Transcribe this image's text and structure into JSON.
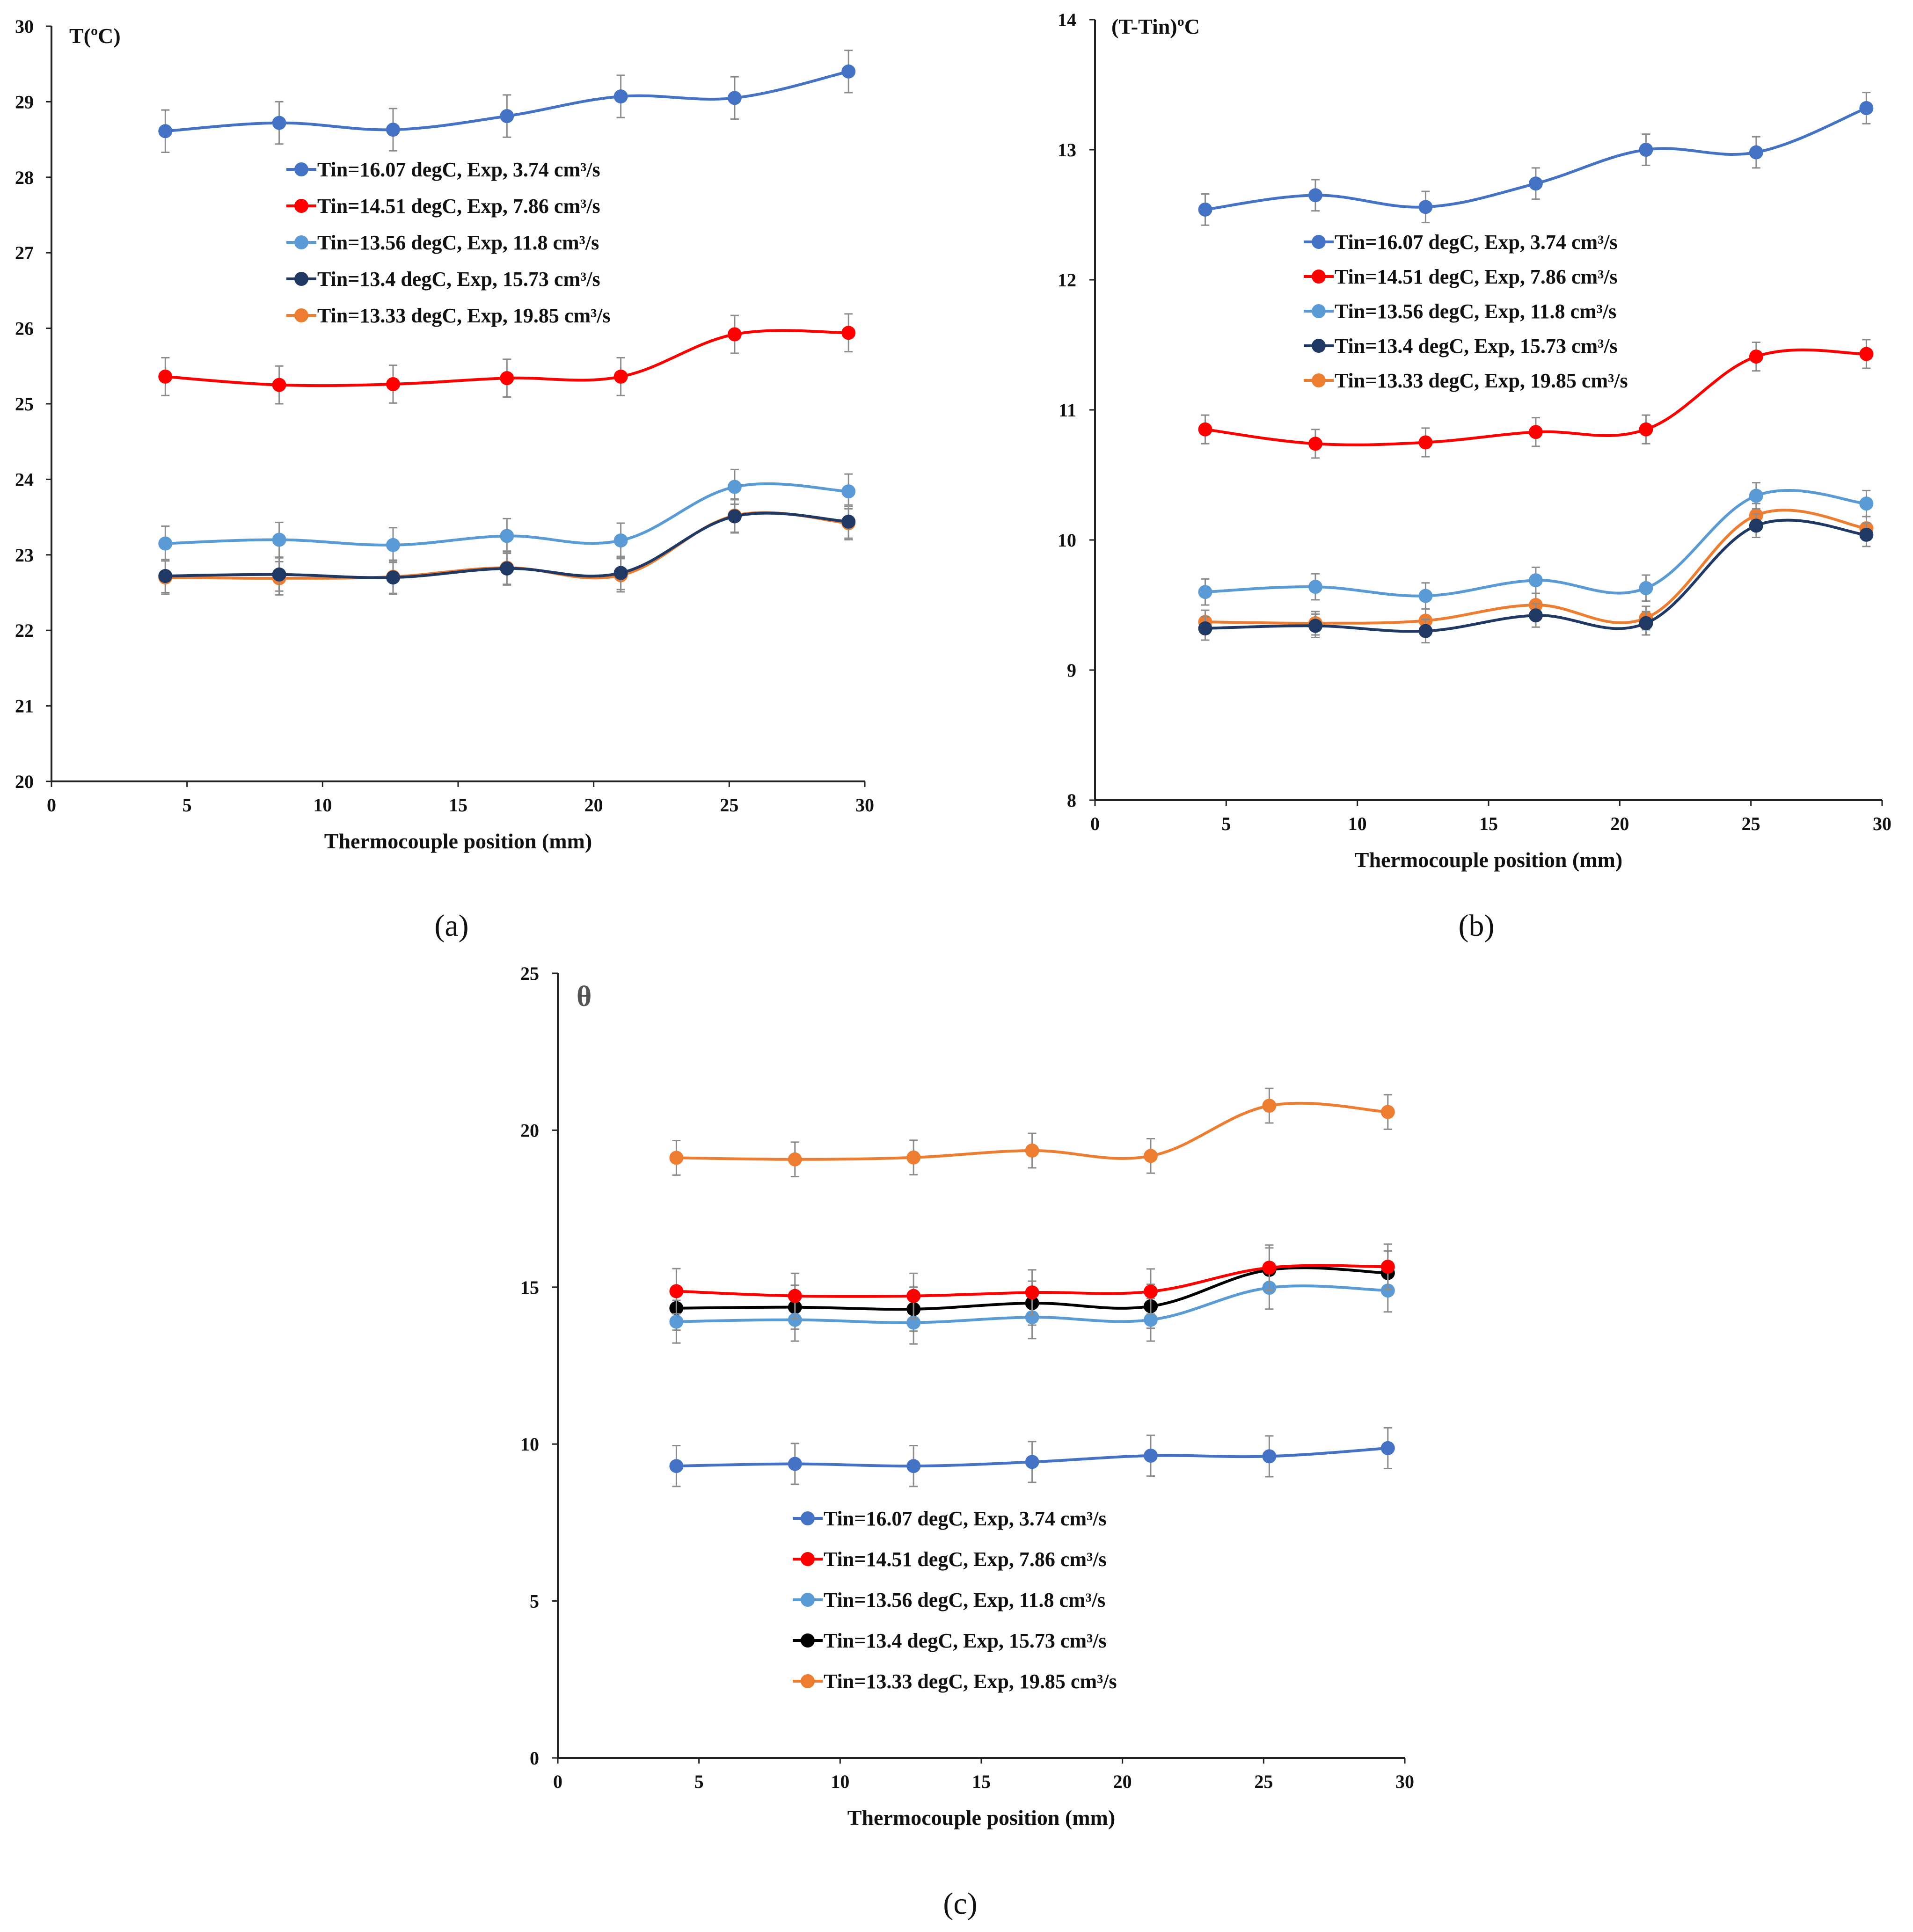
{
  "series_meta": [
    {
      "name": "Tin=16.07 degC, Exp, 3.74 cm³/s",
      "color": "#4472C4"
    },
    {
      "name": "Tin=14.51 degC, Exp, 7.86 cm³/s",
      "color": "#FF0000"
    },
    {
      "name": "Tin=13.56 degC, Exp, 11.8 cm³/s",
      "color": "#5B9BD5"
    },
    {
      "name": "Tin=13.4 degC, Exp, 15.73 cm³/s",
      "color": "#000000"
    },
    {
      "name": "Tin=13.33 degC, Exp, 19.85 cm³/s",
      "color": "#ED7D31"
    }
  ],
  "chart_data": [
    {
      "panel": "(a)",
      "type": "line",
      "title": "",
      "ylabel": "T(ºC)",
      "xlabel": "Thermocouple position (mm)",
      "xlim": [
        0,
        30
      ],
      "ylim": [
        20,
        30
      ],
      "xticks": [
        0,
        5,
        10,
        15,
        20,
        25,
        30
      ],
      "yticks": [
        20,
        21,
        22,
        23,
        24,
        25,
        26,
        27,
        28,
        29,
        30
      ],
      "legend_position": "upper-middle",
      "x": [
        4.2,
        8.4,
        12.6,
        16.8,
        21.0,
        25.2,
        29.4
      ],
      "series": [
        {
          "name": "Tin=16.07 degC, Exp, 3.74 cm³/s",
          "color": "#4472C4",
          "values": [
            28.61,
            28.72,
            28.63,
            28.81,
            29.07,
            29.05,
            29.4
          ],
          "error": 0.28
        },
        {
          "name": "Tin=14.51 degC, Exp, 7.86 cm³/s",
          "color": "#FF0000",
          "values": [
            25.36,
            25.25,
            25.26,
            25.34,
            25.36,
            25.92,
            25.94
          ],
          "error": 0.25
        },
        {
          "name": "Tin=13.56 degC, Exp, 11.8 cm³/s",
          "color": "#5B9BD5",
          "values": [
            23.15,
            23.2,
            23.13,
            23.25,
            23.19,
            23.9,
            23.84
          ],
          "error": 0.23
        },
        {
          "name": "Tin=13.4 degC, Exp, 15.73 cm³/s",
          "color": "#1F3864",
          "values": [
            22.72,
            22.74,
            22.7,
            22.82,
            22.76,
            23.51,
            23.44
          ],
          "error": 0.22
        },
        {
          "name": "Tin=13.33 degC, Exp, 19.85 cm³/s",
          "color": "#ED7D31",
          "values": [
            22.7,
            22.69,
            22.71,
            22.83,
            22.73,
            23.52,
            23.42
          ],
          "error": 0.22
        }
      ]
    },
    {
      "panel": "(b)",
      "type": "line",
      "title": "",
      "ylabel": "(T-Tin)ºC",
      "xlabel": "Thermocouple position (mm)",
      "xlim": [
        0,
        30
      ],
      "ylim": [
        8,
        14
      ],
      "xticks": [
        0,
        5,
        10,
        15,
        20,
        25,
        30
      ],
      "yticks": [
        8,
        9,
        10,
        11,
        12,
        13,
        14
      ],
      "legend_position": "upper-middle",
      "x": [
        4.2,
        8.4,
        12.6,
        16.8,
        21.0,
        25.2,
        29.4
      ],
      "series": [
        {
          "name": "Tin=16.07 degC, Exp, 3.74 cm³/s",
          "color": "#4472C4",
          "values": [
            12.54,
            12.65,
            12.56,
            12.74,
            13.0,
            12.98,
            13.32
          ],
          "error": 0.12
        },
        {
          "name": "Tin=14.51 degC, Exp, 7.86 cm³/s",
          "color": "#FF0000",
          "values": [
            10.85,
            10.74,
            10.75,
            10.83,
            10.85,
            11.41,
            11.43
          ],
          "error": 0.11
        },
        {
          "name": "Tin=13.56 degC, Exp, 11.8 cm³/s",
          "color": "#5B9BD5",
          "values": [
            9.6,
            9.64,
            9.57,
            9.69,
            9.63,
            10.34,
            10.28
          ],
          "error": 0.1
        },
        {
          "name": "Tin=13.4 degC, Exp, 15.73 cm³/s",
          "color": "#1F3864",
          "values": [
            9.32,
            9.34,
            9.3,
            9.42,
            9.36,
            10.11,
            10.04
          ],
          "error": 0.09
        },
        {
          "name": "Tin=13.33 degC, Exp, 19.85 cm³/s",
          "color": "#ED7D31",
          "values": [
            9.37,
            9.36,
            9.38,
            9.5,
            9.4,
            10.19,
            10.09
          ],
          "error": 0.09
        }
      ]
    },
    {
      "panel": "(c)",
      "type": "line",
      "title": "",
      "ylabel": "θ",
      "xlabel": "Thermocouple position (mm)",
      "xlim": [
        0,
        30
      ],
      "ylim": [
        0,
        25
      ],
      "xticks": [
        0,
        5,
        10,
        15,
        20,
        25,
        30
      ],
      "yticks": [
        0,
        5,
        10,
        15,
        20,
        25
      ],
      "legend_position": "bottom-middle",
      "x": [
        4.2,
        8.4,
        12.6,
        16.8,
        21.0,
        25.2,
        29.4
      ],
      "series": [
        {
          "name": "Tin=16.07 degC, Exp, 3.74 cm³/s",
          "color": "#4472C4",
          "values": [
            9.3,
            9.37,
            9.3,
            9.43,
            9.63,
            9.61,
            9.87
          ],
          "error": 0.65
        },
        {
          "name": "Tin=14.51 degC, Exp, 7.86 cm³/s",
          "color": "#FF0000",
          "values": [
            14.87,
            14.72,
            14.72,
            14.83,
            14.86,
            15.62,
            15.65
          ],
          "error": 0.72
        },
        {
          "name": "Tin=13.56 degC, Exp, 11.8 cm³/s",
          "color": "#5B9BD5",
          "values": [
            13.9,
            13.96,
            13.87,
            14.04,
            13.96,
            14.98,
            14.89
          ],
          "error": 0.68
        },
        {
          "name": "Tin=13.4 degC, Exp, 15.73 cm³/s",
          "color": "#000000",
          "values": [
            14.33,
            14.36,
            14.3,
            14.49,
            14.39,
            15.55,
            15.45
          ],
          "error": 0.7
        },
        {
          "name": "Tin=13.33 degC, Exp, 19.85 cm³/s",
          "color": "#ED7D31",
          "values": [
            19.12,
            19.07,
            19.13,
            19.35,
            19.18,
            20.78,
            20.58
          ],
          "error": 0.55
        }
      ]
    }
  ]
}
